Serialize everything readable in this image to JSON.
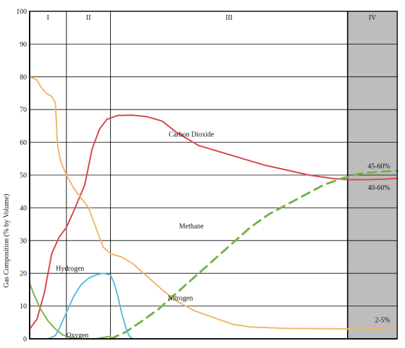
{
  "chart_data": {
    "type": "line",
    "ylabel": "Gas Composition (% by Volume)",
    "xlabel": "",
    "ylim": [
      0,
      100
    ],
    "y_ticks": [
      "0",
      "10",
      "20",
      "30",
      "40",
      "50",
      "60",
      "70",
      "80",
      "90",
      "100"
    ],
    "grid": true,
    "phases": [
      {
        "label": "I",
        "start": 0,
        "end": 10,
        "shaded": false
      },
      {
        "label": "II",
        "start": 10,
        "end": 22,
        "shaded": false
      },
      {
        "label": "III",
        "start": 22,
        "end": 86.5,
        "shaded": false
      },
      {
        "label": "IV",
        "start": 86.5,
        "end": 100,
        "shaded": true
      }
    ],
    "series": [
      {
        "name": "Carbon Dioxide",
        "color": "#d9474d",
        "dashed": false,
        "points": [
          [
            0,
            3
          ],
          [
            2,
            6
          ],
          [
            4,
            14
          ],
          [
            6,
            26
          ],
          [
            8,
            31
          ],
          [
            10,
            34
          ],
          [
            12,
            39
          ],
          [
            15,
            47
          ],
          [
            17,
            58
          ],
          [
            19,
            64
          ],
          [
            21,
            67
          ],
          [
            24,
            68.2
          ],
          [
            28,
            68.3
          ],
          [
            32,
            67.8
          ],
          [
            36,
            66.5
          ],
          [
            40,
            63
          ],
          [
            43,
            61
          ],
          [
            46,
            59
          ],
          [
            52,
            57
          ],
          [
            58,
            55
          ],
          [
            64,
            53
          ],
          [
            70,
            51.5
          ],
          [
            76,
            50
          ],
          [
            82,
            49
          ],
          [
            86.5,
            48.6
          ],
          [
            92,
            48.6
          ],
          [
            97,
            48.8
          ],
          [
            100,
            49
          ]
        ]
      },
      {
        "name": "Methane",
        "color": "#78b24a",
        "dashed": true,
        "points": [
          [
            22,
            0
          ],
          [
            26,
            2
          ],
          [
            30,
            5
          ],
          [
            35,
            9
          ],
          [
            40,
            14
          ],
          [
            45,
            19
          ],
          [
            50,
            24
          ],
          [
            55,
            29
          ],
          [
            60,
            34
          ],
          [
            65,
            38
          ],
          [
            70,
            41
          ],
          [
            75,
            44
          ],
          [
            80,
            47
          ],
          [
            85,
            49
          ],
          [
            90,
            50.5
          ],
          [
            95,
            51
          ],
          [
            100,
            51.3
          ]
        ]
      },
      {
        "name": "Nitrogen",
        "color": "#f2b66b",
        "dashed": false,
        "points": [
          [
            0,
            80
          ],
          [
            2,
            79
          ],
          [
            3,
            77
          ],
          [
            4.5,
            75
          ],
          [
            6,
            74
          ],
          [
            7,
            72
          ],
          [
            7.6,
            59
          ],
          [
            8.5,
            54
          ],
          [
            10,
            50
          ],
          [
            12,
            46
          ],
          [
            14,
            43
          ],
          [
            16,
            40
          ],
          [
            18,
            34
          ],
          [
            20,
            28
          ],
          [
            22,
            26
          ],
          [
            25,
            25
          ],
          [
            28,
            23
          ],
          [
            32,
            19
          ],
          [
            36,
            15
          ],
          [
            40,
            11.5
          ],
          [
            45,
            8.5
          ],
          [
            50,
            6.5
          ],
          [
            55,
            4.5
          ],
          [
            60,
            3.6
          ],
          [
            70,
            3.2
          ],
          [
            80,
            3.1
          ],
          [
            90,
            3
          ],
          [
            100,
            3.5
          ]
        ]
      },
      {
        "name": "Oxygen",
        "color": "#78b24a",
        "dashed": false,
        "points": [
          [
            0,
            17
          ],
          [
            1,
            14
          ],
          [
            3,
            9
          ],
          [
            5,
            5.5
          ],
          [
            7,
            3
          ],
          [
            9,
            1.2
          ],
          [
            11,
            0.4
          ],
          [
            14,
            0
          ],
          [
            18,
            0
          ],
          [
            20,
            0.4
          ],
          [
            22,
            0.8
          ]
        ]
      },
      {
        "name": "Hydrogen",
        "color": "#5bbde0",
        "dashed": false,
        "points": [
          [
            5,
            0
          ],
          [
            7,
            1
          ],
          [
            8,
            3
          ],
          [
            10,
            8
          ],
          [
            12,
            13
          ],
          [
            14,
            16.5
          ],
          [
            16,
            18.5
          ],
          [
            18,
            19.5
          ],
          [
            20,
            20
          ],
          [
            22,
            19.5
          ],
          [
            23,
            17
          ],
          [
            24,
            13
          ],
          [
            25,
            8
          ],
          [
            26,
            4
          ],
          [
            27,
            1
          ],
          [
            28,
            0
          ]
        ]
      }
    ],
    "annotations": [
      {
        "text": "Carbon Dioxide",
        "x": 44,
        "y": 62.5
      },
      {
        "text": "Methane",
        "x": 44,
        "y": 34.5
      },
      {
        "text": "Hydrogen",
        "x": 11,
        "y": 21.5
      },
      {
        "text": "Nitrogen",
        "x": 41,
        "y": 12.5
      },
      {
        "text": "Oxygen",
        "x": 13,
        "y": 1.2
      },
      {
        "text": "45-60%",
        "x": 95,
        "y": 52.8
      },
      {
        "text": "40-60%",
        "x": 95,
        "y": 46.2
      },
      {
        "text": "2-5%",
        "x": 96,
        "y": 5.8
      }
    ]
  }
}
